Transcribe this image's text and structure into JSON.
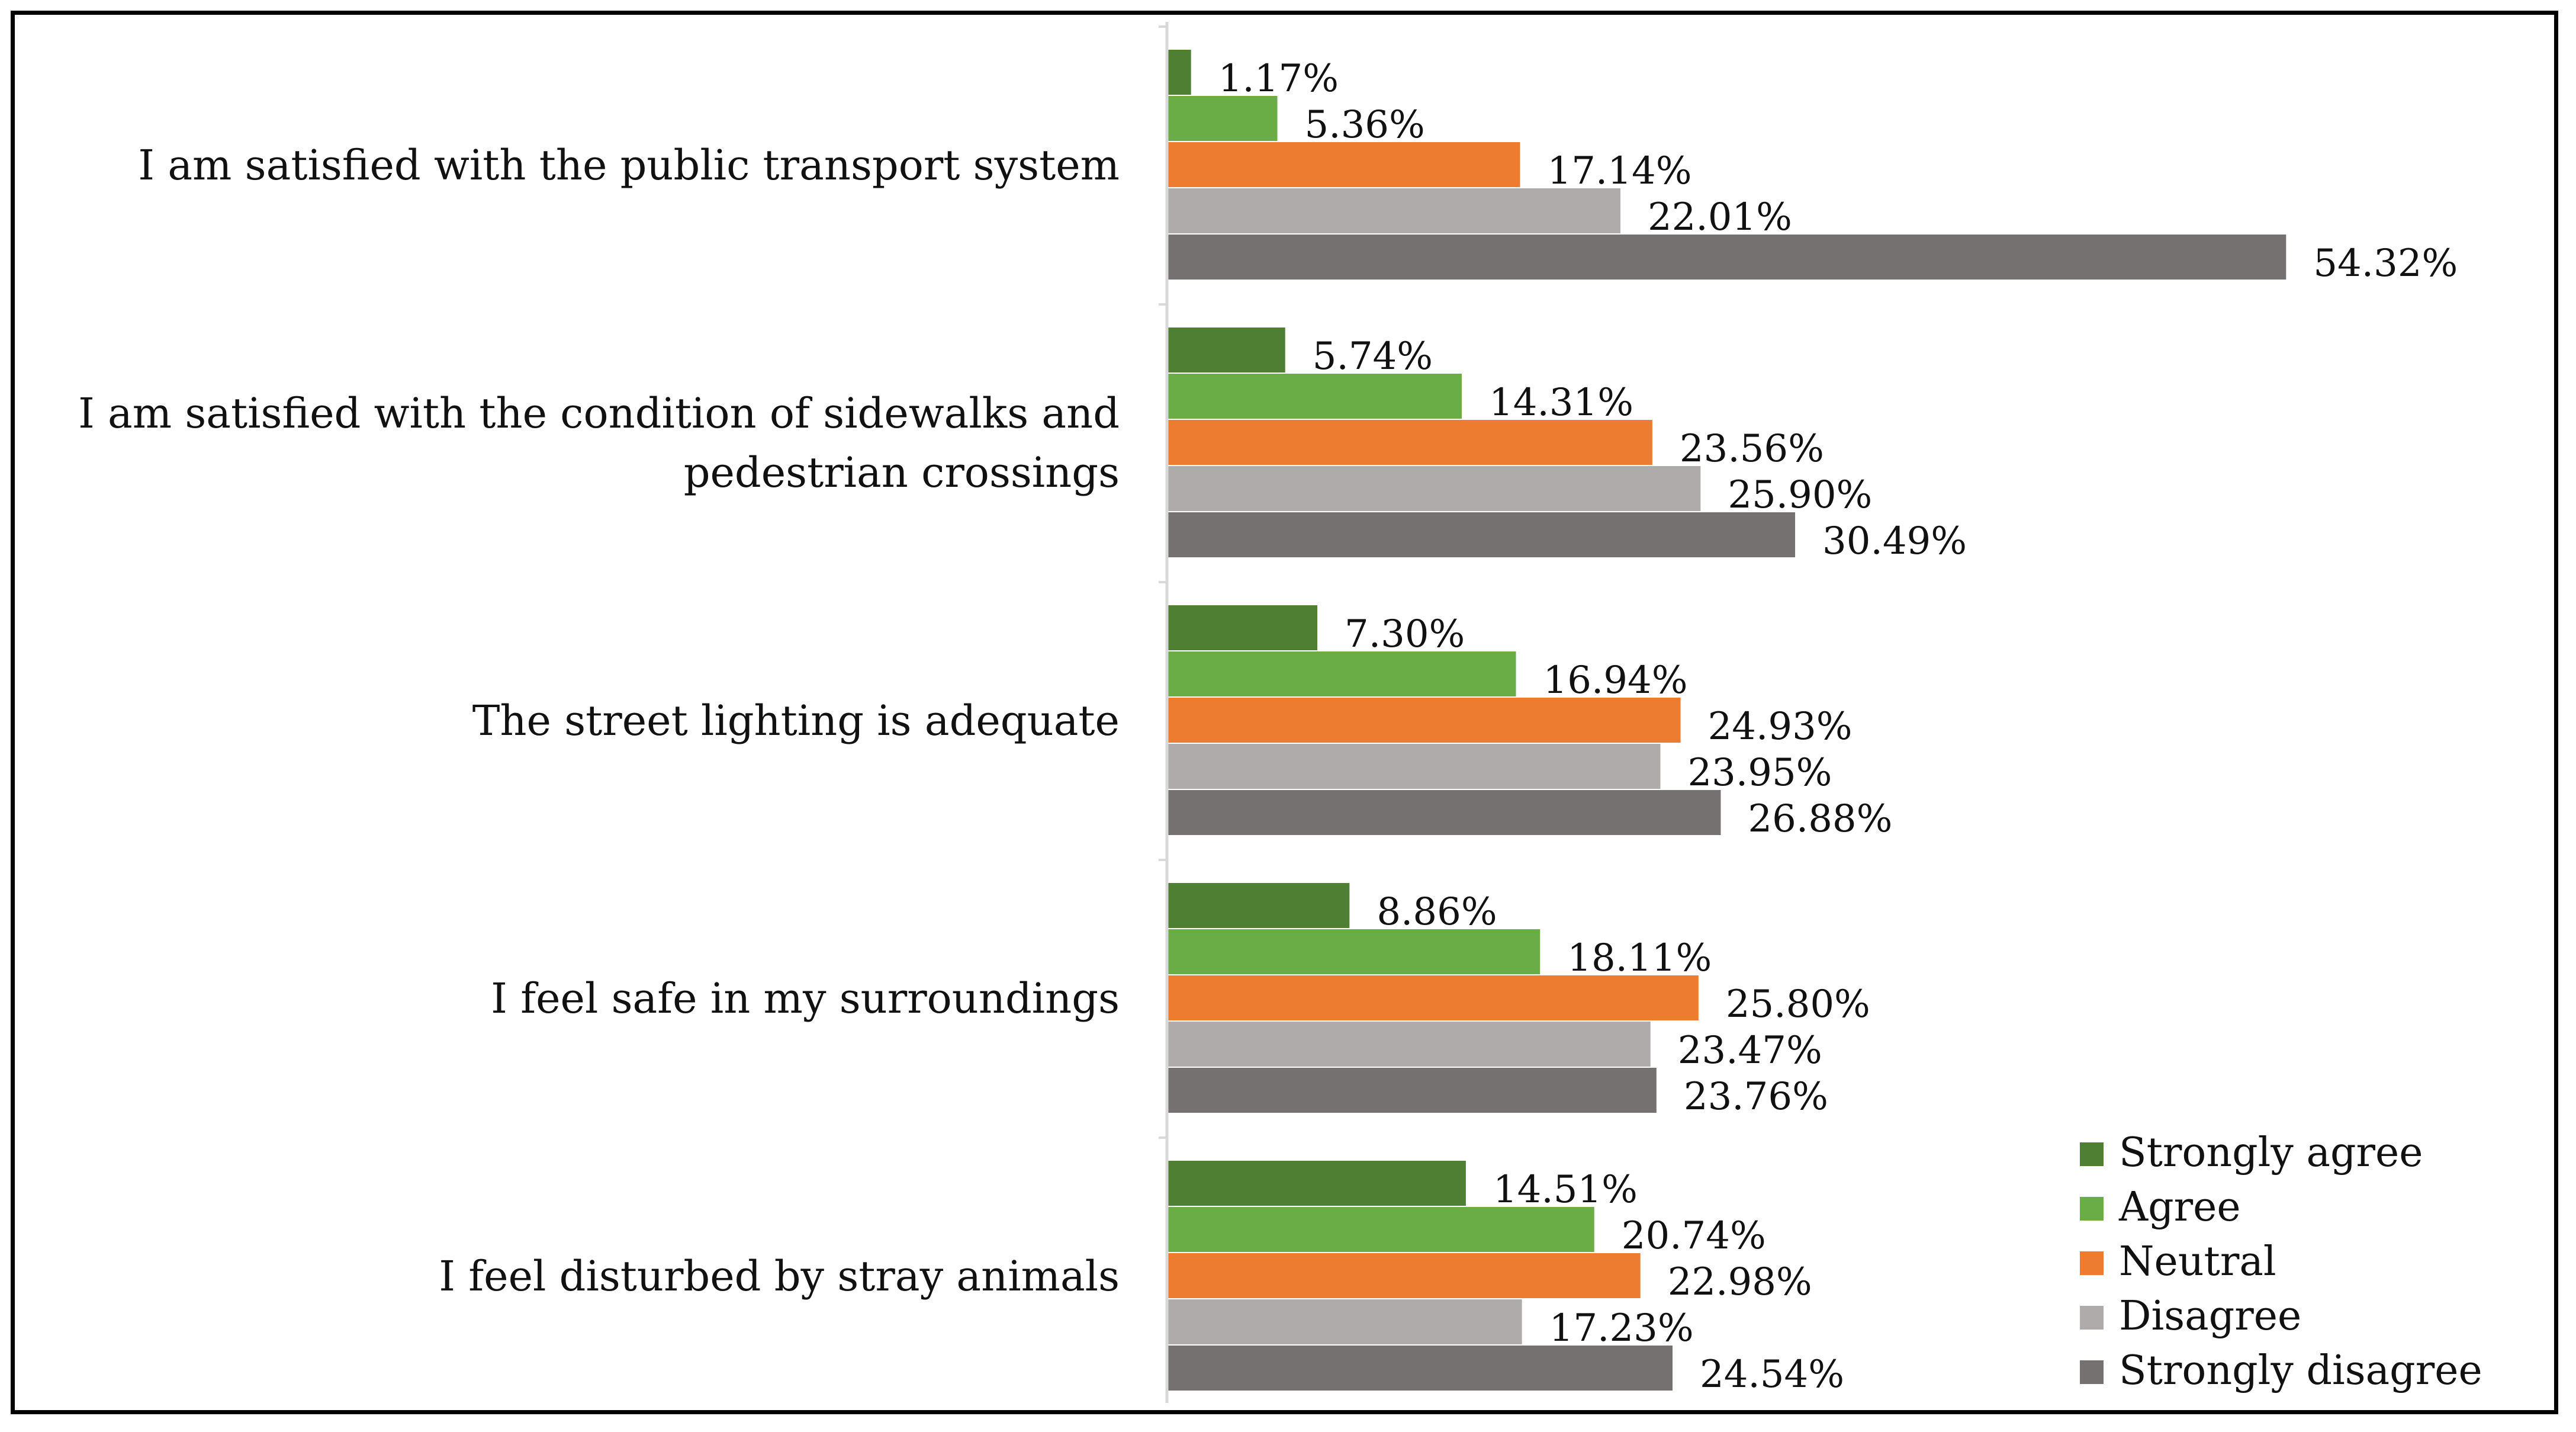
{
  "chart_data": {
    "type": "bar",
    "orientation": "horizontal",
    "categories": [
      [
        "I am satisfied with the public transport system"
      ],
      [
        "I am satisfied with the condition of sidewalks and",
        "pedestrian crossings"
      ],
      [
        "The street lighting is adequate"
      ],
      [
        "I feel safe in my surroundings"
      ],
      [
        "I feel disturbed by stray animals"
      ]
    ],
    "series": [
      {
        "name": "Strongly agree",
        "color": "#4f7f33",
        "values": [
          1.17,
          5.74,
          7.3,
          8.86,
          14.51
        ],
        "labels": [
          "1.17%",
          "5.74%",
          "7.30%",
          "8.86%",
          "14.51%"
        ]
      },
      {
        "name": "Agree",
        "color": "#6aac46",
        "values": [
          5.36,
          14.31,
          16.94,
          18.11,
          20.74
        ],
        "labels": [
          "5.36%",
          "14.31%",
          "16.94%",
          "18.11%",
          "20.74%"
        ]
      },
      {
        "name": "Neutral",
        "color": "#ed7c31",
        "values": [
          17.14,
          23.56,
          24.93,
          25.8,
          22.98
        ],
        "labels": [
          "17.14%",
          "23.56%",
          "24.93%",
          "25.80%",
          "22.98%"
        ]
      },
      {
        "name": "Disagree",
        "color": "#afabab",
        "values": [
          22.01,
          25.9,
          23.95,
          23.47,
          17.23
        ],
        "labels": [
          "22.01%",
          "25.90%",
          "23.95%",
          "23.47%",
          "17.23%"
        ]
      },
      {
        "name": "Strongly disagree",
        "color": "#767171",
        "values": [
          54.32,
          30.49,
          26.88,
          23.76,
          24.54
        ],
        "labels": [
          "54.32%",
          "30.49%",
          "26.88%",
          "23.76%",
          "24.54%"
        ]
      }
    ],
    "xlim": [
      0,
      60
    ],
    "legend": "bottom-right",
    "grid": false,
    "axis_color": "#d9d9d9"
  }
}
